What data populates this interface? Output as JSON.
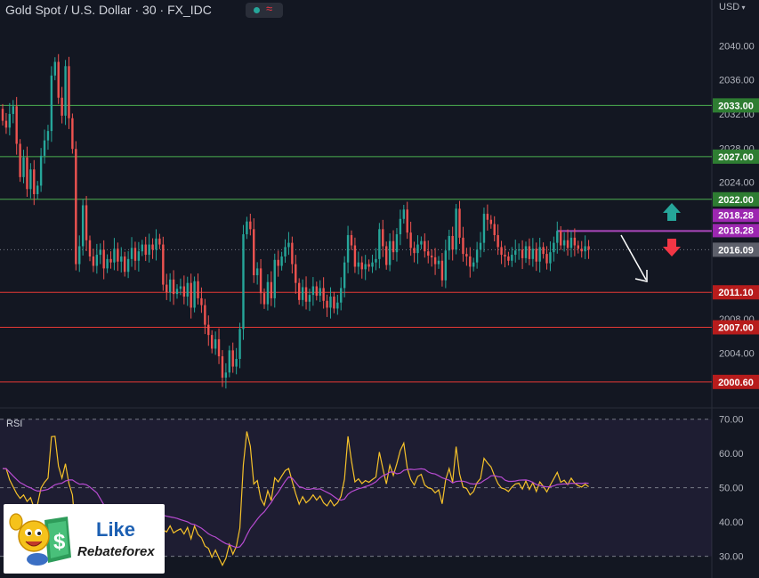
{
  "header": {
    "title": "Gold Spot / U.S. Dollar · 30 · FX_IDC",
    "status_wave": "≈",
    "currency": "USD"
  },
  "rsi": {
    "label": "RSI"
  },
  "logo": {
    "line1": "Like",
    "line2": "Rebateforex"
  },
  "colors": {
    "background": "#131722",
    "up": "#26a69a",
    "down": "#ef5350",
    "resistance": "#4caf50",
    "support": "#e53935",
    "current_price": "#787b86",
    "marker": "#ab47bc",
    "rsi_line": "#f6c22a",
    "rsi_ma": "#b74bd1"
  },
  "chart_data": [
    {
      "type": "candlestick",
      "title": "Gold Spot / U.S. Dollar · 30 · FX_IDC",
      "ylim": [
        1998.6,
        2044.1
      ],
      "yticks": [
        2000,
        2004,
        2008,
        2012,
        2016,
        2020,
        2024,
        2028,
        2032,
        2036,
        2040
      ],
      "ytick_labels": [
        "",
        "2004.00",
        "2008.00",
        "",
        "",
        "",
        "2024.00",
        "2028.00",
        "2032.00",
        "2036.00",
        "2040.00"
      ],
      "ohlc_source": "unlabeled candles; open/close values estimated from the drawn bodies",
      "candles": [
        [
          2032.6,
          2031.2
        ],
        [
          2031.2,
          2030.4
        ],
        [
          2030.4,
          2032.0
        ],
        [
          2032.0,
          2032.9
        ],
        [
          2032.9,
          2028.5
        ],
        [
          2028.5,
          2024.6
        ],
        [
          2024.6,
          2026.9
        ],
        [
          2026.9,
          2023.2
        ],
        [
          2023.2,
          2025.5
        ],
        [
          2025.5,
          2022.6
        ],
        [
          2022.6,
          2023.6
        ],
        [
          2023.6,
          2027.1
        ],
        [
          2027.1,
          2028.9
        ],
        [
          2028.9,
          2030.0
        ],
        [
          2030.0,
          2036.5
        ],
        [
          2036.5,
          2038.1
        ],
        [
          2038.1,
          2033.9
        ],
        [
          2033.9,
          2031.8
        ],
        [
          2031.8,
          2037.6
        ],
        [
          2037.6,
          2031.5
        ],
        [
          2031.5,
          2027.9
        ],
        [
          2027.9,
          2014.4
        ],
        [
          2014.4,
          2016.5
        ],
        [
          2016.5,
          2021.3
        ],
        [
          2021.3,
          2017.2
        ],
        [
          2017.2,
          2015.3
        ],
        [
          2015.3,
          2014.2
        ],
        [
          2014.2,
          2015.5
        ],
        [
          2015.5,
          2016.1
        ],
        [
          2016.1,
          2013.9
        ],
        [
          2013.9,
          2015.0
        ],
        [
          2015.0,
          2014.6
        ],
        [
          2014.6,
          2016.2
        ],
        [
          2016.2,
          2014.7
        ],
        [
          2014.7,
          2015.3
        ],
        [
          2015.3,
          2013.5
        ],
        [
          2013.5,
          2015.0
        ],
        [
          2015.0,
          2016.3
        ],
        [
          2016.3,
          2014.8
        ],
        [
          2014.8,
          2015.9
        ],
        [
          2015.9,
          2016.7
        ],
        [
          2016.7,
          2015.5
        ],
        [
          2015.5,
          2016.7
        ],
        [
          2016.7,
          2016.1
        ],
        [
          2016.1,
          2017.4
        ],
        [
          2017.4,
          2016.7
        ],
        [
          2016.7,
          2012.0
        ],
        [
          2012.0,
          2011.1
        ],
        [
          2011.1,
          2012.6
        ],
        [
          2012.6,
          2010.9
        ],
        [
          2010.9,
          2011.5
        ],
        [
          2011.5,
          2011.8
        ],
        [
          2011.8,
          2010.6
        ],
        [
          2010.6,
          2012.2
        ],
        [
          2012.2,
          2009.3
        ],
        [
          2009.3,
          2012.4
        ],
        [
          2012.4,
          2010.4
        ],
        [
          2010.4,
          2009.6
        ],
        [
          2009.6,
          2007.3
        ],
        [
          2007.3,
          2006.1
        ],
        [
          2006.1,
          2004.5
        ],
        [
          2004.5,
          2005.6
        ],
        [
          2005.6,
          2003.6
        ],
        [
          2003.6,
          2001.1
        ],
        [
          2001.1,
          2001.7
        ],
        [
          2001.7,
          2004.3
        ],
        [
          2004.3,
          2002.4
        ],
        [
          2002.4,
          2003.3
        ],
        [
          2003.3,
          2006.8
        ],
        [
          2006.8,
          2017.9
        ],
        [
          2017.9,
          2019.4
        ],
        [
          2019.4,
          2018.5
        ],
        [
          2018.5,
          2013.1
        ],
        [
          2013.1,
          2013.9
        ],
        [
          2013.9,
          2011.0
        ],
        [
          2011.0,
          2009.7
        ],
        [
          2009.7,
          2012.3
        ],
        [
          2012.3,
          2010.4
        ],
        [
          2010.4,
          2014.9
        ],
        [
          2014.9,
          2014.2
        ],
        [
          2014.2,
          2015.3
        ],
        [
          2015.3,
          2016.4
        ],
        [
          2016.4,
          2016.9
        ],
        [
          2016.9,
          2014.4
        ],
        [
          2014.4,
          2012.2
        ],
        [
          2012.2,
          2010.2
        ],
        [
          2010.2,
          2011.7
        ],
        [
          2011.7,
          2010.0
        ],
        [
          2010.0,
          2010.8
        ],
        [
          2010.8,
          2011.8
        ],
        [
          2011.8,
          2010.7
        ],
        [
          2010.7,
          2011.6
        ],
        [
          2011.6,
          2010.1
        ],
        [
          2010.1,
          2009.3
        ],
        [
          2009.3,
          2010.6
        ],
        [
          2010.6,
          2009.2
        ],
        [
          2009.2,
          2009.9
        ],
        [
          2009.9,
          2011.6
        ],
        [
          2011.6,
          2014.6
        ],
        [
          2014.6,
          2017.8
        ],
        [
          2017.8,
          2016.6
        ],
        [
          2016.6,
          2014.1
        ],
        [
          2014.1,
          2014.6
        ],
        [
          2014.6,
          2013.8
        ],
        [
          2013.8,
          2014.4
        ],
        [
          2014.4,
          2014.1
        ],
        [
          2014.1,
          2014.6
        ],
        [
          2014.6,
          2015.0
        ],
        [
          2015.0,
          2018.5
        ],
        [
          2018.5,
          2016.5
        ],
        [
          2016.5,
          2014.3
        ],
        [
          2014.3,
          2017.1
        ],
        [
          2017.1,
          2015.8
        ],
        [
          2015.8,
          2017.9
        ],
        [
          2017.9,
          2019.7
        ],
        [
          2019.7,
          2020.8
        ],
        [
          2020.8,
          2018.1
        ],
        [
          2018.1,
          2016.3
        ],
        [
          2016.3,
          2015.7
        ],
        [
          2015.7,
          2016.7
        ],
        [
          2016.7,
          2017.1
        ],
        [
          2017.1,
          2015.9
        ],
        [
          2015.9,
          2015.4
        ],
        [
          2015.4,
          2015.2
        ],
        [
          2015.2,
          2014.4
        ],
        [
          2014.4,
          2014.8
        ],
        [
          2014.8,
          2012.5
        ],
        [
          2012.5,
          2016.0
        ],
        [
          2016.0,
          2017.7
        ],
        [
          2017.7,
          2016.1
        ],
        [
          2016.1,
          2020.9
        ],
        [
          2020.9,
          2017.5
        ],
        [
          2017.5,
          2015.6
        ],
        [
          2015.6,
          2015.3
        ],
        [
          2015.3,
          2014.1
        ],
        [
          2014.1,
          2014.6
        ],
        [
          2014.6,
          2016.1
        ],
        [
          2016.1,
          2016.9
        ],
        [
          2016.9,
          2020.3
        ],
        [
          2020.3,
          2019.6
        ],
        [
          2019.6,
          2019.1
        ],
        [
          2019.1,
          2017.8
        ],
        [
          2017.8,
          2016.4
        ],
        [
          2016.4,
          2015.5
        ],
        [
          2015.5,
          2015.3
        ],
        [
          2015.3,
          2014.8
        ],
        [
          2014.8,
          2015.5
        ],
        [
          2015.5,
          2016.0
        ],
        [
          2016.0,
          2016.1
        ],
        [
          2016.1,
          2015.1
        ],
        [
          2015.1,
          2016.5
        ],
        [
          2016.5,
          2015.0
        ],
        [
          2015.0,
          2016.2
        ],
        [
          2016.2,
          2014.7
        ],
        [
          2014.7,
          2016.4
        ],
        [
          2016.4,
          2015.6
        ],
        [
          2015.6,
          2014.5
        ],
        [
          2014.5,
          2015.8
        ],
        [
          2015.8,
          2016.9
        ],
        [
          2016.9,
          2018.3
        ],
        [
          2018.3,
          2016.6
        ],
        [
          2016.6,
          2017.2
        ],
        [
          2017.2,
          2016.3
        ],
        [
          2016.3,
          2017.5
        ],
        [
          2017.5,
          2016.6
        ],
        [
          2016.6,
          2016.2
        ],
        [
          2016.2,
          2015.9
        ],
        [
          2015.9,
          2016.5
        ],
        [
          2016.5,
          2016.1
        ]
      ],
      "levels": [
        {
          "value": 2033.0,
          "label": "2033.00",
          "kind": "resistance"
        },
        {
          "value": 2027.0,
          "label": "2027.00",
          "kind": "resistance"
        },
        {
          "value": 2022.0,
          "label": "2022.00",
          "kind": "resistance"
        },
        {
          "value": 2018.28,
          "label": "2018.28",
          "kind": "marker"
        },
        {
          "value": 2016.09,
          "label": "2016.09",
          "kind": "current"
        },
        {
          "value": 2011.1,
          "label": "2011.10",
          "kind": "support"
        },
        {
          "value": 2007.0,
          "label": "2007.00",
          "kind": "support"
        },
        {
          "value": 2000.6,
          "label": "2000.60",
          "kind": "support"
        }
      ],
      "marker_line_value": 2018.28,
      "grid": false
    },
    {
      "type": "line",
      "title": "RSI",
      "ylim": [
        26,
        72
      ],
      "yticks": [
        30,
        40,
        50,
        60,
        70
      ],
      "ytick_labels": [
        "30.00",
        "40.00",
        "50.00",
        "60.00",
        "70.00"
      ],
      "bands": [
        30,
        70
      ],
      "midline": 50,
      "series": [
        {
          "values": [
            55.6,
            55.6,
            52.3,
            50.3,
            48.3,
            46.9,
            47.9,
            46.0,
            47.1,
            44.1,
            45.2,
            49.9,
            51.6,
            52.8,
            64.9,
            65.0,
            56.3,
            52.8,
            57.0,
            51.2,
            47.9,
            36.6,
            39.2,
            45.1,
            41.8,
            40.5,
            40.1,
            40.7,
            41.3,
            39.9,
            41.1,
            40.5,
            42.5,
            40.8,
            41.6,
            39.4,
            41.4,
            42.8,
            41.0,
            42.6,
            43.5,
            42.0,
            43.5,
            42.9,
            44.6,
            43.6,
            37.7,
            37.1,
            38.9,
            36.8,
            37.5,
            38.0,
            36.5,
            38.4,
            35.1,
            38.8,
            36.4,
            35.4,
            33.0,
            32.3,
            29.7,
            31.8,
            29.5,
            27.4,
            29.4,
            33.5,
            30.6,
            32.9,
            38.2,
            56.7,
            66.4,
            62.1,
            51.1,
            52.1,
            46.8,
            44.9,
            49.1,
            46.3,
            52.9,
            51.7,
            53.4,
            55.0,
            55.6,
            51.9,
            48.3,
            45.2,
            47.4,
            45.6,
            46.5,
            47.9,
            46.4,
            47.6,
            45.6,
            44.7,
            46.4,
            44.7,
            45.6,
            47.5,
            52.5,
            65.0,
            57.8,
            51.7,
            52.6,
            51.2,
            52.1,
            51.6,
            52.4,
            53.1,
            60.4,
            55.6,
            51.1,
            56.6,
            53.6,
            57.0,
            60.9,
            63.0,
            55.7,
            52.4,
            50.8,
            53.3,
            53.9,
            50.8,
            50.0,
            49.7,
            48.5,
            49.4,
            45.3,
            52.3,
            55.6,
            51.6,
            62.0,
            54.0,
            50.2,
            49.8,
            47.9,
            48.9,
            51.5,
            52.7,
            58.6,
            57.2,
            56.1,
            53.5,
            51.2,
            49.9,
            49.6,
            48.9,
            50.2,
            51.1,
            51.3,
            49.6,
            52.0,
            49.5,
            51.5,
            48.9,
            51.7,
            50.4,
            48.8,
            50.8,
            52.6,
            54.5,
            51.6,
            52.2,
            50.9,
            52.8,
            51.3,
            50.6,
            50.2,
            51.0,
            50.3
          ]
        }
      ],
      "grid": false
    }
  ]
}
